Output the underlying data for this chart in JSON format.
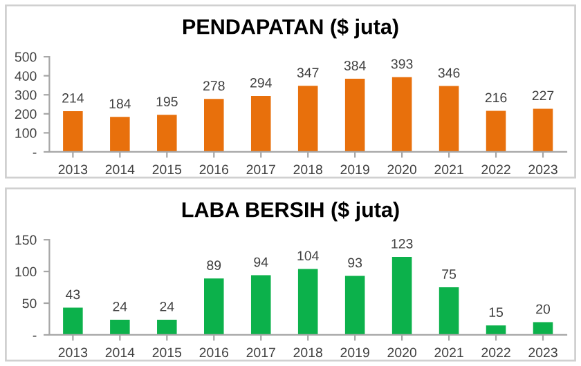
{
  "chart_data": [
    {
      "type": "bar",
      "title": "PENDAPATAN ($ juta)",
      "categories": [
        "2013",
        "2014",
        "2015",
        "2016",
        "2017",
        "2018",
        "2019",
        "2020",
        "2021",
        "2022",
        "2023"
      ],
      "values": [
        214,
        184,
        195,
        278,
        294,
        347,
        384,
        393,
        346,
        216,
        227
      ],
      "color": "#e8700c",
      "ylim": [
        0,
        500
      ],
      "yticks": [
        {
          "value": 0,
          "label": "-"
        },
        100,
        200,
        300,
        400,
        500
      ],
      "grid": false,
      "data_labels": true
    },
    {
      "type": "bar",
      "title": "LABA BERSIH ($ juta)",
      "categories": [
        "2013",
        "2014",
        "2015",
        "2016",
        "2017",
        "2018",
        "2019",
        "2020",
        "2021",
        "2022",
        "2023"
      ],
      "values": [
        43,
        24,
        24,
        89,
        94,
        104,
        93,
        123,
        75,
        15,
        20
      ],
      "color": "#0cb14b",
      "ylim": [
        0,
        150
      ],
      "yticks": [
        {
          "value": 0,
          "label": "-"
        },
        50,
        100,
        150
      ],
      "grid": false,
      "data_labels": true
    }
  ]
}
